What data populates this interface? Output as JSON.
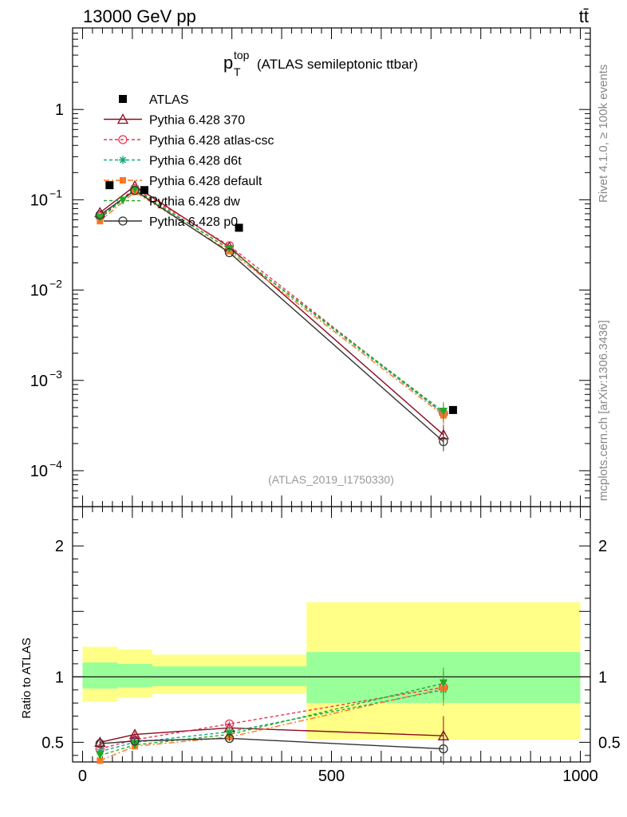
{
  "header": {
    "left": "13000 GeV pp",
    "right": "tt̄"
  },
  "side_labels": {
    "rivet": "Rivet 4.1.0, ≥ 100k events",
    "mcplots": "mcplots.cern.ch [arXiv:1306.3436]"
  },
  "chart_data": [
    {
      "type": "line",
      "title": "p_T^top (ATLAS semileptonic ttbar)",
      "title_main": "p",
      "title_sub": "T",
      "title_sup": "top",
      "title_rest": "(ATLAS semileptonic ttbar)",
      "watermark": "(ATLAS_2019_I1750330)",
      "yscale": "log",
      "ylim": [
        4e-05,
        8
      ],
      "xlim": [
        -20,
        1020
      ],
      "y_ticks": [
        {
          "value": 0.0001,
          "base": "10",
          "exp": "−4"
        },
        {
          "value": 0.001,
          "base": "10",
          "exp": "−3"
        },
        {
          "value": 0.01,
          "base": "10",
          "exp": "−2"
        },
        {
          "value": 0.1,
          "base": "10",
          "exp": "−1"
        },
        {
          "value": 1,
          "base": "1",
          "exp": ""
        }
      ],
      "legend_position": "top-left",
      "data": {
        "name": "ATLAS",
        "x": [
          35,
          105,
          295,
          725
        ],
        "y": [
          0.145,
          0.128,
          0.049,
          0.00047
        ],
        "band_edges": [
          0,
          70,
          140,
          450,
          1000
        ]
      },
      "series": [
        {
          "name": "Pythia 6.428 370",
          "color": "#8b0a1e",
          "dash": "",
          "marker": "triangle-open",
          "x": [
            35,
            105,
            295,
            725
          ],
          "y": [
            0.072,
            0.142,
            0.03,
            0.00025
          ]
        },
        {
          "name": "Pythia 6.428 atlas-csc",
          "color": "#ee3355",
          "dash": "4,3",
          "marker": "circle-open",
          "x": [
            35,
            105,
            295,
            725
          ],
          "y": [
            0.065,
            0.133,
            0.031,
            0.00043
          ]
        },
        {
          "name": "Pythia 6.428 d6t",
          "color": "#11aa77",
          "dash": "4,3",
          "marker": "star",
          "x": [
            35,
            105,
            295,
            725
          ],
          "y": [
            0.062,
            0.128,
            0.0285,
            0.00043
          ]
        },
        {
          "name": "Pythia 6.428 default",
          "color": "#ff7722",
          "dash": "7,3,2,3",
          "marker": "square",
          "x": [
            35,
            105,
            295,
            725
          ],
          "y": [
            0.058,
            0.122,
            0.027,
            0.00041
          ]
        },
        {
          "name": "Pythia 6.428 dw",
          "color": "#22aa22",
          "dash": "4,3",
          "marker": "triangle-down",
          "x": [
            35,
            105,
            295,
            725
          ],
          "y": [
            0.063,
            0.13,
            0.0285,
            0.00045
          ]
        },
        {
          "name": "Pythia 6.428 p0",
          "color": "#333333",
          "dash": "",
          "marker": "circle-open",
          "x": [
            35,
            105,
            295,
            725
          ],
          "y": [
            0.068,
            0.127,
            0.026,
            0.00021
          ]
        }
      ]
    },
    {
      "type": "line",
      "ylabel": "Ratio to ATLAS",
      "xlim": [
        -20,
        1020
      ],
      "ylim": [
        0.35,
        2.3
      ],
      "x_ticks": [
        0,
        500,
        1000
      ],
      "y_ticks": [
        0.5,
        1,
        2
      ],
      "reference_line": 1,
      "bands": {
        "edges": [
          0,
          70,
          140,
          450,
          1000
        ],
        "inner": [
          [
            0.91,
            1.11
          ],
          [
            0.92,
            1.1
          ],
          [
            0.93,
            1.08
          ],
          [
            0.8,
            1.19
          ],
          [
            0.8,
            1.19
          ]
        ],
        "outer": [
          [
            0.81,
            1.23
          ],
          [
            0.84,
            1.21
          ],
          [
            0.87,
            1.17
          ],
          [
            0.52,
            1.57
          ],
          [
            0.52,
            1.57
          ]
        ],
        "inner_color": "#99ff99",
        "outer_color": "#ffff88"
      },
      "series": [
        {
          "name": "Pythia 6.428 370",
          "color": "#8b0a1e",
          "dash": "",
          "marker": "triangle-open",
          "x": [
            35,
            105,
            295,
            725
          ],
          "y": [
            0.5,
            0.56,
            0.61,
            0.55
          ],
          "err": [
            0.02,
            0.02,
            0.02,
            0.15
          ]
        },
        {
          "name": "Pythia 6.428 atlas-csc",
          "color": "#ee3355",
          "dash": "4,3",
          "marker": "circle-open",
          "x": [
            35,
            105,
            295,
            725
          ],
          "y": [
            0.45,
            0.52,
            0.64,
            0.92
          ],
          "err": [
            0.02,
            0.02,
            0.02,
            0.12
          ]
        },
        {
          "name": "Pythia 6.428 d6t",
          "color": "#11aa77",
          "dash": "4,3",
          "marker": "star",
          "x": [
            35,
            105,
            295,
            725
          ],
          "y": [
            0.43,
            0.5,
            0.58,
            0.9
          ],
          "err": [
            0.02,
            0.02,
            0.02,
            0.12
          ]
        },
        {
          "name": "Pythia 6.428 default",
          "color": "#ff7722",
          "dash": "7,3,2,3",
          "marker": "square",
          "x": [
            35,
            105,
            295,
            725
          ],
          "y": [
            0.36,
            0.47,
            0.54,
            0.91
          ],
          "err": [
            0.02,
            0.02,
            0.02,
            0.12
          ]
        },
        {
          "name": "Pythia 6.428 dw",
          "color": "#22aa22",
          "dash": "4,3",
          "marker": "triangle-down",
          "x": [
            35,
            105,
            295,
            725
          ],
          "y": [
            0.4,
            0.48,
            0.56,
            0.95
          ],
          "err": [
            0.02,
            0.02,
            0.02,
            0.12
          ]
        },
        {
          "name": "Pythia 6.428 p0",
          "color": "#333333",
          "dash": "",
          "marker": "circle-open",
          "x": [
            35,
            105,
            295,
            725
          ],
          "y": [
            0.49,
            0.51,
            0.53,
            0.45
          ],
          "err": [
            0.02,
            0.02,
            0.02,
            0.12
          ]
        }
      ]
    }
  ]
}
